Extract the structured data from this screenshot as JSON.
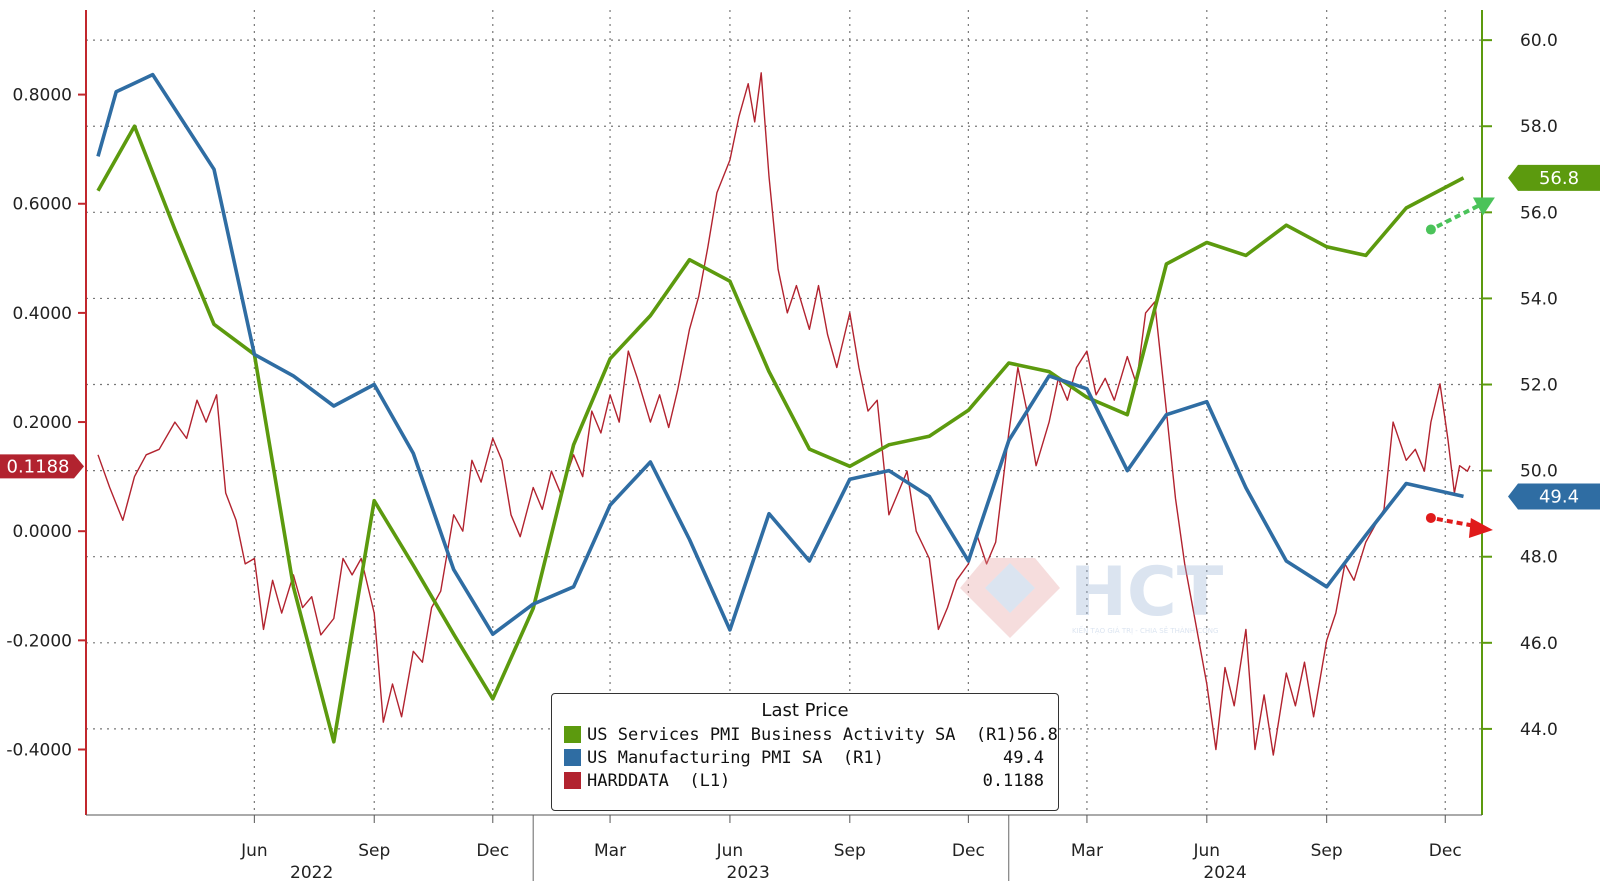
{
  "colors": {
    "services": "#5c9a0e",
    "manufacturing": "#2f6da3",
    "harddata": "#b2232f",
    "axis_left": "#c1272d",
    "axis_right": "#5c9a0e",
    "arrow_up": "#4bc35a",
    "arrow_down": "#e01b1b"
  },
  "legend": {
    "header": "Last Price",
    "items": [
      {
        "name": "US Services PMI Business Activity SA  (R1)",
        "value": "56.8",
        "color": "#5c9a0e"
      },
      {
        "name": "US Manufacturing PMI SA  (R1)",
        "value": "49.4",
        "color": "#2f6da3"
      },
      {
        "name": "HARDDATA  (L1)",
        "value": "0.1188",
        "color": "#b2232f"
      }
    ]
  },
  "watermark": {
    "text": "HCT",
    "tagline": "KIẾN TẠO GIÁ TRỊ - CHIA SẺ THÀNH CÔNG"
  },
  "chart_data": {
    "type": "line",
    "x_range": [
      "2022-02-01",
      "2024-12-20"
    ],
    "x_ticks": [
      {
        "label": "Jun",
        "date": "2022-06-01"
      },
      {
        "label": "Sep",
        "date": "2022-09-01"
      },
      {
        "label": "Dec",
        "date": "2022-12-01"
      },
      {
        "label": "Mar",
        "date": "2023-03-01"
      },
      {
        "label": "Jun",
        "date": "2023-06-01"
      },
      {
        "label": "Sep",
        "date": "2023-09-01"
      },
      {
        "label": "Dec",
        "date": "2023-12-01"
      },
      {
        "label": "Mar",
        "date": "2024-03-01"
      },
      {
        "label": "Jun",
        "date": "2024-06-01"
      },
      {
        "label": "Sep",
        "date": "2024-09-01"
      },
      {
        "label": "Dec",
        "date": "2024-12-01"
      }
    ],
    "year_labels": [
      {
        "label": "2022",
        "date": "2022-07-15"
      },
      {
        "label": "2023",
        "date": "2023-06-15"
      },
      {
        "label": "2024",
        "date": "2024-06-15"
      }
    ],
    "year_dividers": [
      "2023-01-01",
      "2024-01-01"
    ],
    "y_left": {
      "min": -0.52,
      "max": 0.955,
      "ticks": [
        0.8,
        0.6,
        0.4,
        0.2,
        0.0,
        -0.2,
        -0.4
      ],
      "tick_labels": [
        "0.8000",
        "0.6000",
        "0.4000",
        "0.2000",
        "0.0000",
        "-0.2000",
        "-0.4000"
      ]
    },
    "y_right": {
      "min": 42.0,
      "max": 60.7,
      "ticks": [
        60,
        58,
        56,
        54,
        52,
        50,
        48,
        46,
        44
      ],
      "tick_labels": [
        "60.0",
        "58.0",
        "56.0",
        "54.0",
        "52.0",
        "50.0",
        "48.0",
        "46.0",
        "44.0"
      ]
    },
    "grid": true,
    "last_value_tags": [
      {
        "series": "HARDDATA",
        "axis": "left",
        "value": 0.1188,
        "label": "0.1188"
      },
      {
        "series": "US Services PMI Business Activity SA",
        "axis": "right",
        "value": 56.8,
        "label": "56.8"
      },
      {
        "series": "US Manufacturing PMI SA",
        "axis": "right",
        "value": 49.4,
        "label": "49.4"
      }
    ],
    "series": [
      {
        "name": "US Services PMI Business Activity SA",
        "axis": "right",
        "color": "#5c9a0e",
        "points": [
          [
            "2022-02-01",
            56.5
          ],
          [
            "2022-03-01",
            58.0
          ],
          [
            "2022-04-01",
            55.6
          ],
          [
            "2022-05-01",
            53.4
          ],
          [
            "2022-06-01",
            52.7
          ],
          [
            "2022-07-01",
            47.3
          ],
          [
            "2022-08-01",
            43.7
          ],
          [
            "2022-09-01",
            49.3
          ],
          [
            "2022-10-01",
            47.8
          ],
          [
            "2022-11-01",
            46.2
          ],
          [
            "2022-12-01",
            44.7
          ],
          [
            "2023-01-01",
            46.8
          ],
          [
            "2023-02-01",
            50.6
          ],
          [
            "2023-03-01",
            52.6
          ],
          [
            "2023-04-01",
            53.6
          ],
          [
            "2023-05-01",
            54.9
          ],
          [
            "2023-06-01",
            54.4
          ],
          [
            "2023-07-01",
            52.3
          ],
          [
            "2023-08-01",
            50.5
          ],
          [
            "2023-09-01",
            50.1
          ],
          [
            "2023-10-01",
            50.6
          ],
          [
            "2023-11-01",
            50.8
          ],
          [
            "2023-12-01",
            51.4
          ],
          [
            "2024-01-01",
            52.5
          ],
          [
            "2024-02-01",
            52.3
          ],
          [
            "2024-03-01",
            51.7
          ],
          [
            "2024-04-01",
            51.3
          ],
          [
            "2024-05-01",
            54.8
          ],
          [
            "2024-06-01",
            55.3
          ],
          [
            "2024-07-01",
            55.0
          ],
          [
            "2024-08-01",
            55.7
          ],
          [
            "2024-09-01",
            55.2
          ],
          [
            "2024-10-01",
            55.0
          ],
          [
            "2024-11-01",
            56.1
          ],
          [
            "2024-12-15",
            56.8
          ]
        ]
      },
      {
        "name": "US Manufacturing PMI SA",
        "axis": "right",
        "color": "#2f6da3",
        "points": [
          [
            "2022-02-01",
            57.3
          ],
          [
            "2022-02-15",
            58.8
          ],
          [
            "2022-03-15",
            59.2
          ],
          [
            "2022-05-01",
            57.0
          ],
          [
            "2022-06-01",
            52.7
          ],
          [
            "2022-07-01",
            52.2
          ],
          [
            "2022-08-01",
            51.5
          ],
          [
            "2022-09-01",
            52.0
          ],
          [
            "2022-10-01",
            50.4
          ],
          [
            "2022-11-01",
            47.7
          ],
          [
            "2022-12-01",
            46.2
          ],
          [
            "2023-01-01",
            46.9
          ],
          [
            "2023-02-01",
            47.3
          ],
          [
            "2023-03-01",
            49.2
          ],
          [
            "2023-04-01",
            50.2
          ],
          [
            "2023-05-01",
            48.4
          ],
          [
            "2023-06-01",
            46.3
          ],
          [
            "2023-07-01",
            49.0
          ],
          [
            "2023-08-01",
            47.9
          ],
          [
            "2023-09-01",
            49.8
          ],
          [
            "2023-10-01",
            50.0
          ],
          [
            "2023-11-01",
            49.4
          ],
          [
            "2023-12-01",
            47.9
          ],
          [
            "2024-01-01",
            50.7
          ],
          [
            "2024-02-01",
            52.2
          ],
          [
            "2024-03-01",
            51.9
          ],
          [
            "2024-04-01",
            50.0
          ],
          [
            "2024-05-01",
            51.3
          ],
          [
            "2024-06-01",
            51.6
          ],
          [
            "2024-07-01",
            49.6
          ],
          [
            "2024-08-01",
            47.9
          ],
          [
            "2024-09-01",
            47.3
          ],
          [
            "2024-10-01",
            48.5
          ],
          [
            "2024-11-01",
            49.7
          ],
          [
            "2024-12-15",
            49.4
          ]
        ]
      },
      {
        "name": "HARDDATA",
        "axis": "left",
        "color": "#b2232f",
        "points": [
          [
            "2022-02-01",
            0.14
          ],
          [
            "2022-02-10",
            0.08
          ],
          [
            "2022-02-20",
            0.02
          ],
          [
            "2022-03-01",
            0.1
          ],
          [
            "2022-03-10",
            0.14
          ],
          [
            "2022-03-20",
            0.15
          ],
          [
            "2022-04-01",
            0.2
          ],
          [
            "2022-04-10",
            0.17
          ],
          [
            "2022-04-18",
            0.24
          ],
          [
            "2022-04-25",
            0.2
          ],
          [
            "2022-05-03",
            0.25
          ],
          [
            "2022-05-10",
            0.07
          ],
          [
            "2022-05-18",
            0.02
          ],
          [
            "2022-05-25",
            -0.06
          ],
          [
            "2022-06-01",
            -0.05
          ],
          [
            "2022-06-08",
            -0.18
          ],
          [
            "2022-06-15",
            -0.09
          ],
          [
            "2022-06-22",
            -0.15
          ],
          [
            "2022-07-01",
            -0.08
          ],
          [
            "2022-07-08",
            -0.14
          ],
          [
            "2022-07-15",
            -0.12
          ],
          [
            "2022-07-22",
            -0.19
          ],
          [
            "2022-08-01",
            -0.16
          ],
          [
            "2022-08-08",
            -0.05
          ],
          [
            "2022-08-15",
            -0.08
          ],
          [
            "2022-08-22",
            -0.05
          ],
          [
            "2022-09-01",
            -0.15
          ],
          [
            "2022-09-08",
            -0.35
          ],
          [
            "2022-09-15",
            -0.28
          ],
          [
            "2022-09-22",
            -0.34
          ],
          [
            "2022-10-01",
            -0.22
          ],
          [
            "2022-10-08",
            -0.24
          ],
          [
            "2022-10-15",
            -0.14
          ],
          [
            "2022-10-22",
            -0.11
          ],
          [
            "2022-11-01",
            0.03
          ],
          [
            "2022-11-08",
            0.0
          ],
          [
            "2022-11-15",
            0.13
          ],
          [
            "2022-11-22",
            0.09
          ],
          [
            "2022-12-01",
            0.17
          ],
          [
            "2022-12-08",
            0.13
          ],
          [
            "2022-12-15",
            0.03
          ],
          [
            "2022-12-22",
            -0.01
          ],
          [
            "2023-01-01",
            0.08
          ],
          [
            "2023-01-08",
            0.04
          ],
          [
            "2023-01-15",
            0.11
          ],
          [
            "2023-01-22",
            0.07
          ],
          [
            "2023-02-01",
            0.14
          ],
          [
            "2023-02-08",
            0.1
          ],
          [
            "2023-02-15",
            0.22
          ],
          [
            "2023-02-22",
            0.18
          ],
          [
            "2023-03-01",
            0.25
          ],
          [
            "2023-03-08",
            0.2
          ],
          [
            "2023-03-15",
            0.33
          ],
          [
            "2023-03-22",
            0.28
          ],
          [
            "2023-04-01",
            0.2
          ],
          [
            "2023-04-08",
            0.25
          ],
          [
            "2023-04-15",
            0.19
          ],
          [
            "2023-04-22",
            0.26
          ],
          [
            "2023-05-01",
            0.37
          ],
          [
            "2023-05-08",
            0.43
          ],
          [
            "2023-05-15",
            0.52
          ],
          [
            "2023-05-22",
            0.62
          ],
          [
            "2023-06-01",
            0.68
          ],
          [
            "2023-06-08",
            0.76
          ],
          [
            "2023-06-15",
            0.82
          ],
          [
            "2023-06-20",
            0.75
          ],
          [
            "2023-06-25",
            0.84
          ],
          [
            "2023-07-01",
            0.65
          ],
          [
            "2023-07-08",
            0.48
          ],
          [
            "2023-07-15",
            0.4
          ],
          [
            "2023-07-22",
            0.45
          ],
          [
            "2023-08-01",
            0.37
          ],
          [
            "2023-08-08",
            0.45
          ],
          [
            "2023-08-15",
            0.36
          ],
          [
            "2023-08-22",
            0.3
          ],
          [
            "2023-09-01",
            0.4
          ],
          [
            "2023-09-08",
            0.3
          ],
          [
            "2023-09-15",
            0.22
          ],
          [
            "2023-09-22",
            0.24
          ],
          [
            "2023-10-01",
            0.03
          ],
          [
            "2023-10-08",
            0.07
          ],
          [
            "2023-10-15",
            0.11
          ],
          [
            "2023-10-22",
            0.0
          ],
          [
            "2023-11-01",
            -0.05
          ],
          [
            "2023-11-08",
            -0.18
          ],
          [
            "2023-11-15",
            -0.14
          ],
          [
            "2023-11-22",
            -0.09
          ],
          [
            "2023-12-01",
            -0.06
          ],
          [
            "2023-12-08",
            -0.01
          ],
          [
            "2023-12-15",
            -0.06
          ],
          [
            "2023-12-22",
            -0.02
          ],
          [
            "2024-01-01",
            0.18
          ],
          [
            "2024-01-08",
            0.3
          ],
          [
            "2024-01-15",
            0.22
          ],
          [
            "2024-01-22",
            0.12
          ],
          [
            "2024-02-01",
            0.2
          ],
          [
            "2024-02-08",
            0.28
          ],
          [
            "2024-02-15",
            0.24
          ],
          [
            "2024-02-22",
            0.3
          ],
          [
            "2024-03-01",
            0.33
          ],
          [
            "2024-03-08",
            0.25
          ],
          [
            "2024-03-15",
            0.28
          ],
          [
            "2024-03-22",
            0.24
          ],
          [
            "2024-04-01",
            0.32
          ],
          [
            "2024-04-08",
            0.27
          ],
          [
            "2024-04-15",
            0.4
          ],
          [
            "2024-04-22",
            0.42
          ],
          [
            "2024-05-01",
            0.22
          ],
          [
            "2024-05-08",
            0.06
          ],
          [
            "2024-05-15",
            -0.06
          ],
          [
            "2024-05-22",
            -0.15
          ],
          [
            "2024-06-01",
            -0.28
          ],
          [
            "2024-06-08",
            -0.4
          ],
          [
            "2024-06-15",
            -0.25
          ],
          [
            "2024-06-22",
            -0.32
          ],
          [
            "2024-07-01",
            -0.18
          ],
          [
            "2024-07-08",
            -0.4
          ],
          [
            "2024-07-15",
            -0.3
          ],
          [
            "2024-07-22",
            -0.41
          ],
          [
            "2024-08-01",
            -0.26
          ],
          [
            "2024-08-08",
            -0.32
          ],
          [
            "2024-08-15",
            -0.24
          ],
          [
            "2024-08-22",
            -0.34
          ],
          [
            "2024-09-01",
            -0.2
          ],
          [
            "2024-09-08",
            -0.15
          ],
          [
            "2024-09-15",
            -0.06
          ],
          [
            "2024-09-22",
            -0.09
          ],
          [
            "2024-10-01",
            -0.02
          ],
          [
            "2024-10-08",
            0.01
          ],
          [
            "2024-10-15",
            0.04
          ],
          [
            "2024-10-22",
            0.2
          ],
          [
            "2024-11-01",
            0.13
          ],
          [
            "2024-11-08",
            0.15
          ],
          [
            "2024-11-15",
            0.11
          ],
          [
            "2024-11-20",
            0.2
          ],
          [
            "2024-11-27",
            0.27
          ],
          [
            "2024-12-03",
            0.17
          ],
          [
            "2024-12-08",
            0.07
          ],
          [
            "2024-12-12",
            0.12
          ],
          [
            "2024-12-18",
            0.11
          ],
          [
            "2024-12-20",
            0.12
          ]
        ]
      }
    ]
  }
}
